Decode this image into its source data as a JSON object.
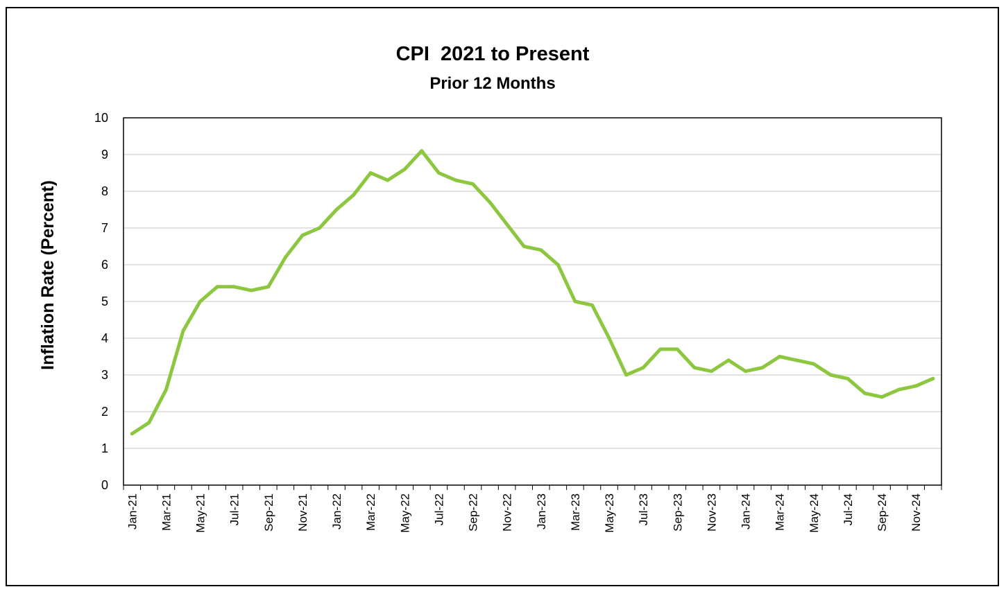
{
  "chart_data": {
    "type": "line",
    "title": "CPI  2021 to Present",
    "subtitle": "Prior 12 Months",
    "xlabel": "",
    "ylabel": "Inflation Rate (Percent)",
    "ylim": [
      0,
      10
    ],
    "yticks": [
      0,
      1,
      2,
      3,
      4,
      5,
      6,
      7,
      8,
      9,
      10
    ],
    "grid": "horizontal",
    "legend": "none",
    "line_color": "#8dc63f",
    "categories": [
      "Jan-21",
      "Feb-21",
      "Mar-21",
      "Apr-21",
      "May-21",
      "Jun-21",
      "Jul-21",
      "Aug-21",
      "Sep-21",
      "Oct-21",
      "Nov-21",
      "Dec-21",
      "Jan-22",
      "Feb-22",
      "Mar-22",
      "Apr-22",
      "May-22",
      "Jun-22",
      "Jul-22",
      "Aug-22",
      "Sep-22",
      "Oct-22",
      "Nov-22",
      "Dec-22",
      "Jan-23",
      "Feb-23",
      "Mar-23",
      "Apr-23",
      "May-23",
      "Jun-23",
      "Jul-23",
      "Aug-23",
      "Sep-23",
      "Oct-23",
      "Nov-23",
      "Dec-23",
      "Jan-24",
      "Feb-24",
      "Mar-24",
      "Apr-24",
      "May-24",
      "Jun-24",
      "Jul-24",
      "Aug-24",
      "Sep-24",
      "Oct-24",
      "Nov-24",
      "Dec-24"
    ],
    "xtick_labels": [
      "Jan-21",
      "Mar-21",
      "May-21",
      "Jul-21",
      "Sep-21",
      "Nov-21",
      "Jan-22",
      "Mar-22",
      "May-22",
      "Jul-22",
      "Sep-22",
      "Nov-22",
      "Jan-23",
      "Mar-23",
      "May-23",
      "Jul-23",
      "Sep-23",
      "Nov-23",
      "Jan-24",
      "Mar-24",
      "May-24",
      "Jul-24",
      "Sep-24",
      "Nov-24"
    ],
    "series": [
      {
        "values": [
          1.4,
          1.7,
          2.6,
          4.2,
          5.0,
          5.4,
          5.4,
          5.3,
          5.4,
          6.2,
          6.8,
          7.0,
          7.5,
          7.9,
          8.5,
          8.3,
          8.6,
          9.1,
          8.5,
          8.3,
          8.2,
          7.7,
          7.1,
          6.5,
          6.4,
          6.0,
          5.0,
          4.9,
          4.0,
          3.0,
          3.2,
          3.7,
          3.7,
          3.2,
          3.1,
          3.4,
          3.1,
          3.2,
          3.5,
          3.4,
          3.3,
          3.0,
          2.9,
          2.5,
          2.4,
          2.6,
          2.7,
          2.9
        ]
      }
    ]
  }
}
